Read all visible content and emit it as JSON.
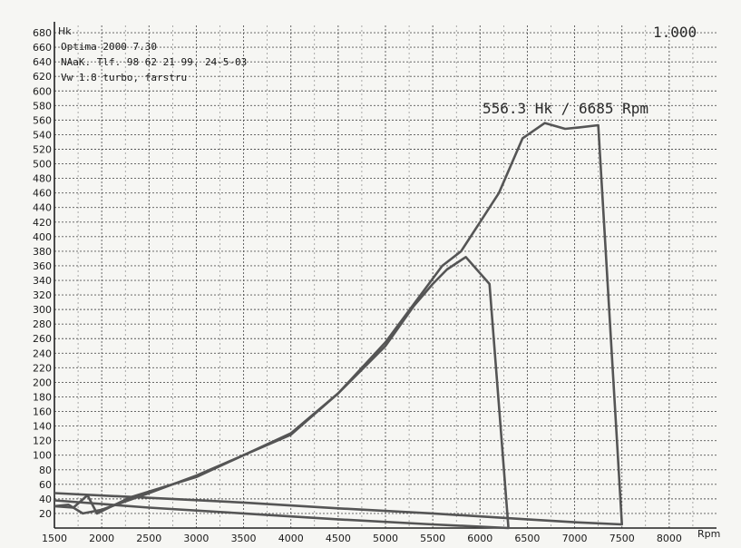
{
  "chart_data": {
    "type": "line",
    "ylabel": "Hk",
    "xlabel": "Rpm",
    "scale_label": "1.000",
    "peak_annotation": "556.3 Hk / 6685 Rpm",
    "header_lines": [
      "Optima 2000 7.30",
      "NAaK. Tlf. 98 62 21 99. 24-5-03",
      "Vw 1.8 turbo, farstru"
    ],
    "xlim": [
      1500,
      8500
    ],
    "ylim": [
      0,
      690
    ],
    "x_ticks": [
      1500,
      2000,
      2500,
      3000,
      3500,
      4000,
      4500,
      5000,
      5500,
      6000,
      6500,
      7000,
      7500,
      8000
    ],
    "y_ticks": [
      20,
      40,
      60,
      80,
      100,
      120,
      140,
      160,
      180,
      200,
      220,
      240,
      260,
      280,
      300,
      320,
      340,
      360,
      380,
      400,
      420,
      440,
      460,
      480,
      500,
      520,
      540,
      560,
      580,
      600,
      620,
      640,
      660,
      680
    ],
    "series": [
      {
        "color": "#555555",
        "points": [
          [
            1500,
            30
          ],
          [
            1700,
            28
          ],
          [
            1850,
            45
          ],
          [
            1950,
            20
          ],
          [
            2300,
            42
          ],
          [
            2700,
            58
          ],
          [
            3000,
            70
          ],
          [
            3500,
            100
          ],
          [
            4000,
            130
          ],
          [
            4500,
            185
          ],
          [
            5000,
            255
          ],
          [
            5400,
            325
          ],
          [
            5600,
            360
          ],
          [
            5800,
            380
          ],
          [
            6000,
            420
          ],
          [
            6200,
            460
          ],
          [
            6450,
            535
          ],
          [
            6685,
            556
          ],
          [
            6900,
            548
          ],
          [
            7050,
            550
          ],
          [
            7250,
            553
          ],
          [
            7500,
            5
          ],
          [
            7000,
            8
          ],
          [
            6500,
            12
          ],
          [
            5500,
            20
          ],
          [
            4500,
            27
          ],
          [
            3500,
            35
          ],
          [
            1500,
            48
          ]
        ]
      },
      {
        "color": "#555555",
        "points": [
          [
            1500,
            30
          ],
          [
            1650,
            32
          ],
          [
            1800,
            20
          ],
          [
            2000,
            25
          ],
          [
            2500,
            48
          ],
          [
            3000,
            72
          ],
          [
            3500,
            100
          ],
          [
            4000,
            128
          ],
          [
            4500,
            185
          ],
          [
            5000,
            250
          ],
          [
            5300,
            305
          ],
          [
            5500,
            335
          ],
          [
            5650,
            355
          ],
          [
            5850,
            372
          ],
          [
            6100,
            335
          ],
          [
            6300,
            0
          ],
          [
            5500,
            5
          ],
          [
            4500,
            12
          ],
          [
            3500,
            20
          ],
          [
            2500,
            28
          ],
          [
            1500,
            38
          ]
        ]
      }
    ]
  }
}
